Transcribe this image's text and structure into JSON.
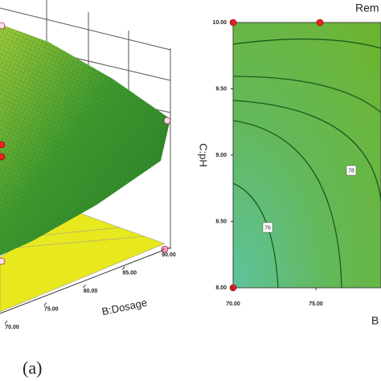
{
  "caption": "(a)",
  "chart_data": [
    {
      "type": "surface3d",
      "xlabel": "B:Dosage",
      "xlim": [
        70,
        90
      ],
      "xticks": [
        {
          "value": 70,
          "label": "70.00"
        },
        {
          "value": 75,
          "label": "75.00"
        },
        {
          "value": 80,
          "label": "80.00"
        },
        {
          "value": 85,
          "label": "85.00"
        },
        {
          "value": 90,
          "label": "90.00"
        }
      ]
    },
    {
      "type": "contour",
      "title": "Rem",
      "xlabel": "B",
      "ylabel": "C:pH",
      "xlim": [
        70,
        80
      ],
      "ylim": [
        8,
        10
      ],
      "xticks": [
        {
          "value": 70,
          "label": "70.00"
        },
        {
          "value": 75,
          "label": "75.00"
        }
      ],
      "yticks": [
        {
          "value": 8,
          "label": "8.00"
        },
        {
          "value": 8.5,
          "label": "8.50"
        },
        {
          "value": 9,
          "label": "9.00"
        },
        {
          "value": 9.5,
          "label": "9.50"
        },
        {
          "value": 10,
          "label": "10.00"
        }
      ],
      "contour_levels": [
        76,
        78
      ]
    }
  ]
}
